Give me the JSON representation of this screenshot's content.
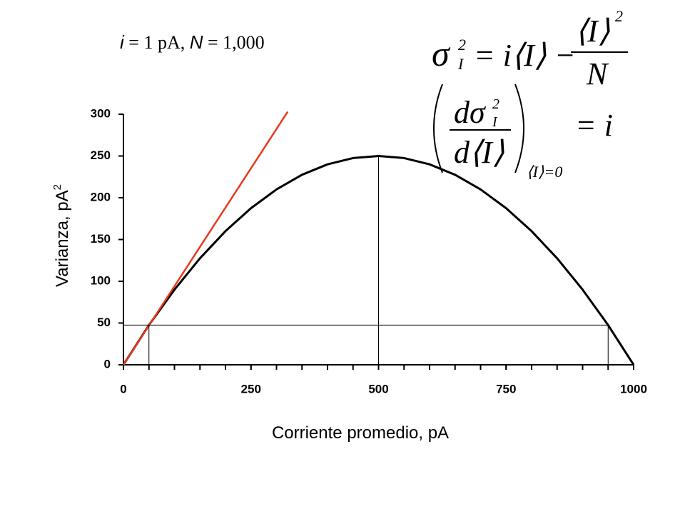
{
  "chart_data": {
    "type": "line",
    "annotation_parts": [
      "i",
      " = 1 pA, ",
      "N",
      " = 1,000"
    ],
    "formula_1": [
      "σ",
      "I",
      "2",
      "= i⟨I⟩ −",
      "⟨I⟩",
      "2",
      "N"
    ],
    "formula_2": [
      "dσ",
      "I",
      "2",
      "d⟨I⟩",
      "⟨I⟩=0",
      "= i"
    ],
    "x_label": "Corriente promedio, pA",
    "y_label_parts": [
      "Varianza, pA",
      "2"
    ],
    "xlim": [
      0,
      1000
    ],
    "ylim": [
      0,
      300
    ],
    "xticks": [
      0,
      250,
      500,
      750,
      1000
    ],
    "xminorticks": [
      0,
      50,
      100,
      150,
      200,
      250,
      300,
      350,
      400,
      450,
      500,
      550,
      600,
      650,
      700,
      750,
      800,
      850,
      900,
      950,
      1000
    ],
    "yticks": [
      0,
      50,
      100,
      150,
      200,
      250,
      300
    ],
    "series": [
      {
        "color": "#000000",
        "width": 3,
        "x": [
          0,
          50,
          100,
          150,
          200,
          250,
          300,
          350,
          400,
          450,
          500,
          550,
          600,
          650,
          700,
          750,
          800,
          850,
          900,
          950,
          1000
        ],
        "values": [
          0,
          47.5,
          90,
          127.5,
          160,
          187.5,
          210,
          227.5,
          240,
          247.5,
          250,
          247.5,
          240,
          227.5,
          210,
          187.5,
          160,
          127.5,
          90,
          47.5,
          0
        ]
      },
      {
        "color": "#e8391d",
        "width": 2.5,
        "x": [
          0,
          322
        ],
        "values": [
          0,
          303
        ]
      },
      {
        "color": "#000000",
        "width": 1,
        "x": [
          500,
          500
        ],
        "values": [
          0,
          250
        ]
      },
      {
        "color": "#000000",
        "width": 1,
        "x": [
          0,
          950
        ],
        "values": [
          47.5,
          47.5
        ]
      },
      {
        "color": "#000000",
        "width": 1,
        "x": [
          50,
          50
        ],
        "values": [
          0,
          47.5
        ]
      },
      {
        "color": "#000000",
        "width": 1,
        "x": [
          950,
          950
        ],
        "values": [
          0,
          47.5
        ]
      }
    ]
  }
}
